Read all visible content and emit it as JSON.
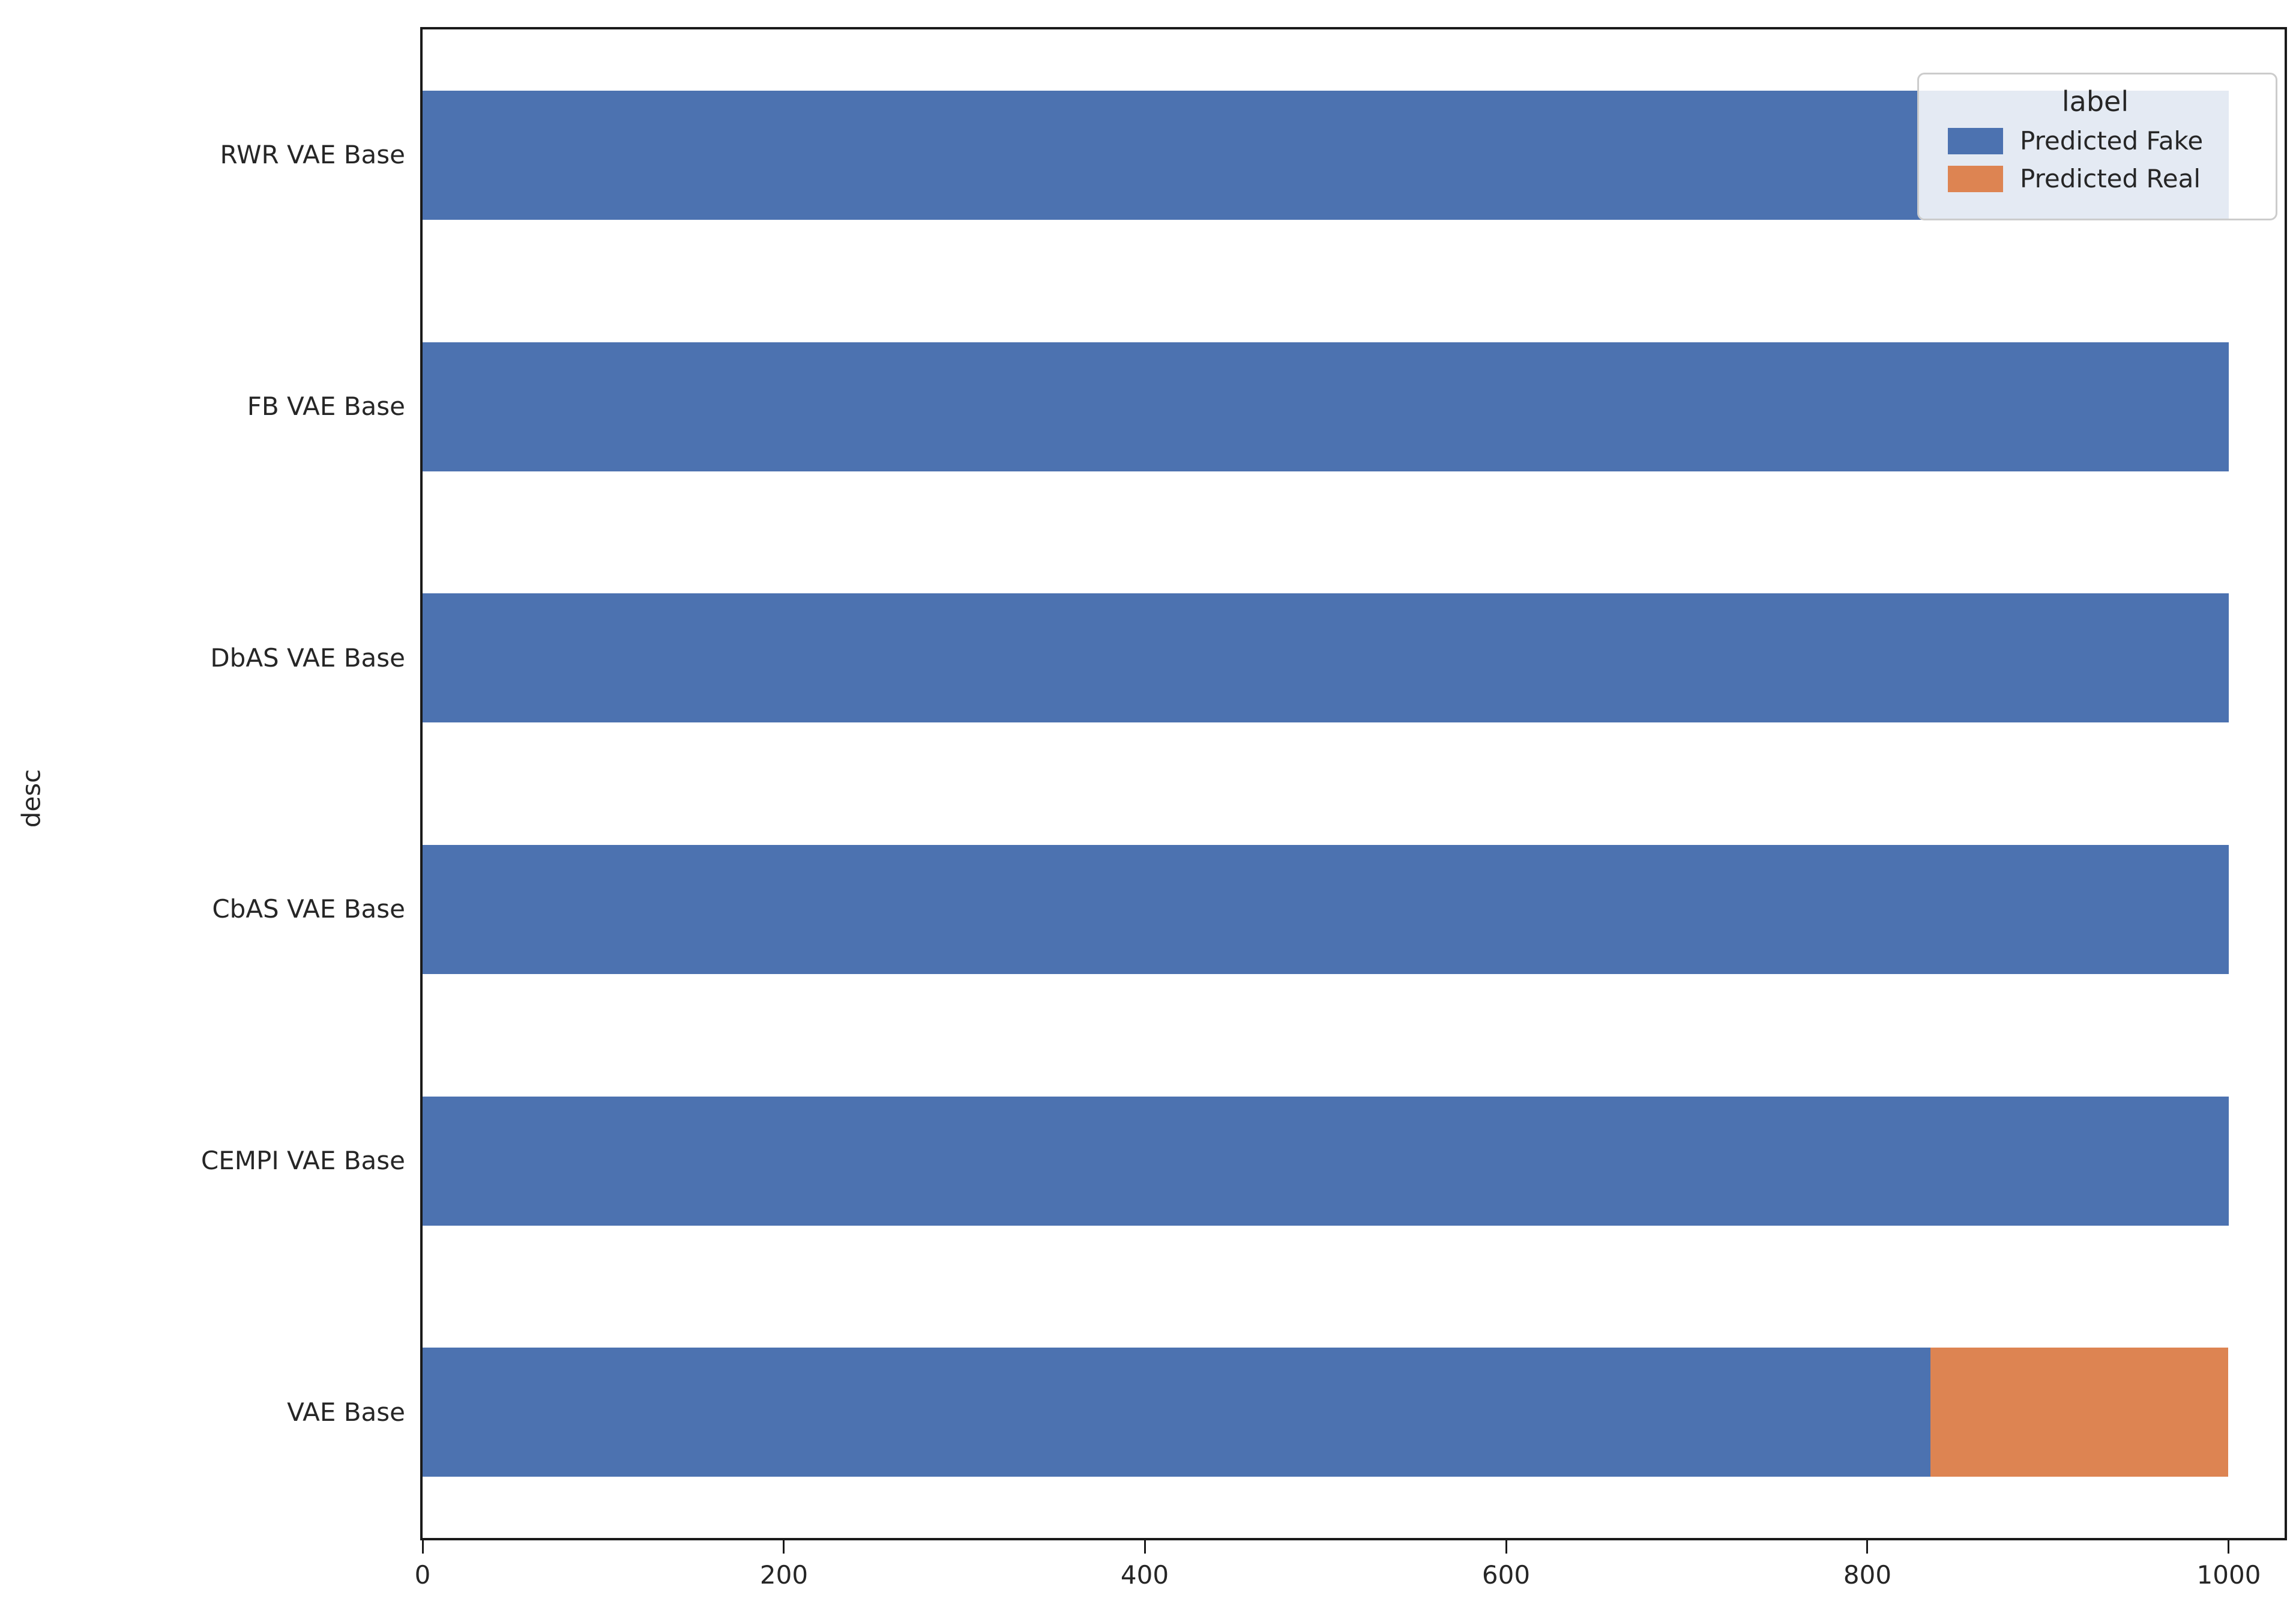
{
  "chart_data": {
    "type": "bar",
    "orientation": "horizontal",
    "stacked": true,
    "title": "",
    "xlabel": "",
    "ylabel": "desc",
    "categories": [
      "RWR VAE Base",
      "FB VAE Base",
      "DbAS VAE Base",
      "CbAS VAE Base",
      "CEMPI VAE Base",
      "VAE Base"
    ],
    "series": [
      {
        "name": "Predicted Fake",
        "color": "#4c72b0",
        "values": [
          1000,
          1000,
          1000,
          1000,
          1000,
          835
        ]
      },
      {
        "name": "Predicted Real",
        "color": "#dd8452",
        "values": [
          0,
          0,
          0,
          0,
          0,
          165
        ]
      }
    ],
    "xlim": [
      0,
      1031
    ],
    "xticks": [
      0,
      200,
      400,
      600,
      800,
      1000
    ],
    "grid": false,
    "legend": {
      "title": "label",
      "position": "upper right",
      "entries": [
        "Predicted Fake",
        "Predicted Real"
      ]
    }
  }
}
